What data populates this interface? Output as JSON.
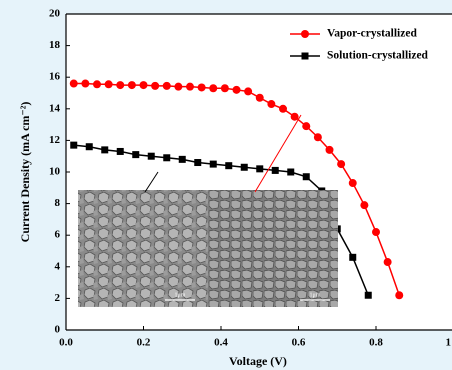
{
  "chart_data": {
    "type": "line",
    "xlabel": "Voltage (V)",
    "ylabel": "Current Density (mA cm⁻²)",
    "xlim": [
      0,
      1
    ],
    "ylim": [
      0,
      20
    ],
    "xticks": [
      {
        "value": 0,
        "label": "0.0"
      },
      0.2,
      0.4,
      0.6,
      0.8,
      1
    ],
    "yticks": [
      0,
      2,
      4,
      6,
      8,
      10,
      12,
      14,
      16,
      18,
      20
    ],
    "legend": "upper right",
    "inset_labels": [
      "1μm",
      "1μm"
    ],
    "series": [
      {
        "name": "Vapor-crystallized",
        "color": "#ff0000",
        "marker": "circle",
        "x": [
          0.02,
          0.05,
          0.08,
          0.11,
          0.14,
          0.17,
          0.2,
          0.23,
          0.26,
          0.29,
          0.32,
          0.35,
          0.38,
          0.41,
          0.44,
          0.47,
          0.5,
          0.53,
          0.56,
          0.59,
          0.62,
          0.65,
          0.68,
          0.71,
          0.74,
          0.77,
          0.8,
          0.83,
          0.86
        ],
        "values": [
          15.6,
          15.6,
          15.55,
          15.55,
          15.5,
          15.5,
          15.5,
          15.45,
          15.45,
          15.4,
          15.4,
          15.35,
          15.3,
          15.3,
          15.2,
          15.1,
          14.7,
          14.3,
          14.0,
          13.5,
          12.9,
          12.2,
          11.4,
          10.5,
          9.3,
          7.9,
          6.2,
          4.3,
          2.2
        ]
      },
      {
        "name": "Solution-crystallized",
        "color": "#000000",
        "marker": "square",
        "x": [
          0.02,
          0.06,
          0.1,
          0.14,
          0.18,
          0.22,
          0.26,
          0.3,
          0.34,
          0.38,
          0.42,
          0.46,
          0.5,
          0.54,
          0.58,
          0.62,
          0.66,
          0.7,
          0.74,
          0.78
        ],
        "values": [
          11.7,
          11.6,
          11.4,
          11.3,
          11.1,
          11.0,
          10.9,
          10.8,
          10.6,
          10.5,
          10.4,
          10.3,
          10.2,
          10.1,
          10.0,
          9.7,
          8.8,
          6.4,
          4.6,
          2.2
        ]
      }
    ]
  }
}
